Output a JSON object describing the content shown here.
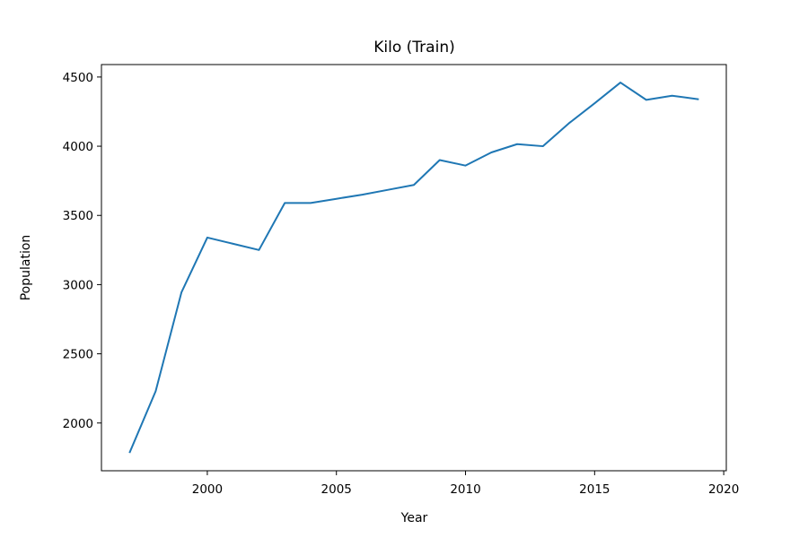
{
  "chart_data": {
    "type": "line",
    "title": "Kilo (Train)",
    "xlabel": "Year",
    "ylabel": "Population",
    "xlim": [
      1995.9,
      2020.1
    ],
    "ylim": [
      1655,
      4590
    ],
    "x_ticks": [
      2000,
      2005,
      2010,
      2015,
      2020
    ],
    "y_ticks": [
      2000,
      2500,
      3000,
      3500,
      4000,
      4500
    ],
    "grid": false,
    "series": [
      {
        "color": "#1f77b4",
        "x": [
          1997,
          1998,
          1999,
          2000,
          2001,
          2002,
          2003,
          2004,
          2005,
          2006,
          2007,
          2008,
          2009,
          2010,
          2011,
          2012,
          2013,
          2014,
          2015,
          2016,
          2017,
          2018,
          2019
        ],
        "y": [
          1790,
          2230,
          2945,
          3340,
          3295,
          3250,
          3590,
          3590,
          3620,
          3650,
          3685,
          3720,
          3900,
          3860,
          3955,
          4015,
          4000,
          4165,
          4310,
          4460,
          4335,
          4365,
          4340
        ]
      }
    ]
  }
}
